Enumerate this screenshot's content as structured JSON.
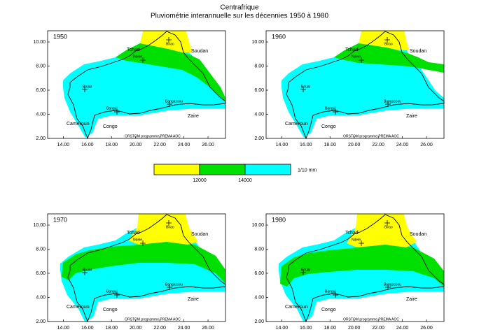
{
  "title": "Centrafrique",
  "subtitle": "Pluviométrie interannuelle sur les décennies 1950 à 1980",
  "legend": {
    "colors": [
      "#ffff00",
      "#00e000",
      "#00ffff"
    ],
    "thresholds": [
      12000,
      14000
    ],
    "unit": "1/10 mm"
  },
  "axes": {
    "xlim": [
      12.7,
      27.45
    ],
    "ylim": [
      2,
      10.93
    ],
    "xticks": [
      {
        "value": 14,
        "label": "14.00"
      },
      {
        "value": 16,
        "label": "16.00"
      },
      {
        "value": 18,
        "label": "18.00"
      },
      {
        "value": 20,
        "label": "20.00"
      },
      {
        "value": 22,
        "label": "22.00"
      },
      {
        "value": 24,
        "label": "24.00"
      },
      {
        "value": 26,
        "label": "26.00"
      }
    ],
    "yticks": [
      {
        "value": 2,
        "label": "2.00"
      },
      {
        "value": 4,
        "label": "4.00"
      },
      {
        "value": 6,
        "label": "6.00"
      },
      {
        "value": 8,
        "label": "8.00"
      },
      {
        "value": 10,
        "label": "10.00"
      }
    ]
  },
  "panels": [
    {
      "label": "1950"
    },
    {
      "label": "1960"
    },
    {
      "label": "1970"
    },
    {
      "label": "1980"
    }
  ],
  "countries": [
    "Tchad",
    "Soudan",
    "Cameroun",
    "Congo",
    "Zaire"
  ],
  "cities": [
    "Birao",
    "Ndele",
    "Bouar",
    "Bangui",
    "Bangassou"
  ],
  "credit": "ORSTOM programme PREMA AOC"
}
